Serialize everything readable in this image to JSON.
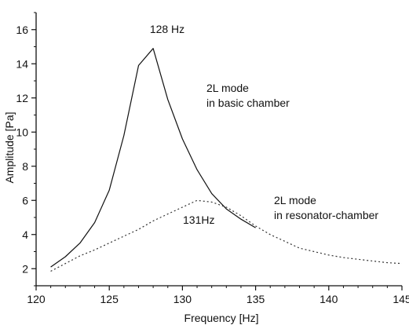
{
  "chart_data": {
    "type": "line",
    "xlabel": "Frequency [Hz]",
    "ylabel": "Amplitude [Pa]",
    "xlim": [
      120,
      145
    ],
    "ylim": [
      1,
      17
    ],
    "xticks": [
      120,
      125,
      130,
      135,
      140,
      145
    ],
    "yticks": [
      2,
      4,
      6,
      8,
      10,
      12,
      14,
      16
    ],
    "grid": false,
    "series": [
      {
        "style": "solid",
        "color": "#111111",
        "x": [
          121,
          122,
          123,
          124,
          125,
          126,
          127,
          128,
          129,
          130,
          131,
          132,
          133,
          134,
          135
        ],
        "y": [
          2.1,
          2.7,
          3.5,
          4.7,
          6.6,
          9.8,
          13.9,
          14.9,
          11.9,
          9.6,
          7.8,
          6.4,
          5.5,
          4.9,
          4.4
        ]
      },
      {
        "style": "dotted",
        "color": "#333333",
        "x": [
          121,
          122,
          123,
          124,
          125,
          126,
          127,
          128,
          129,
          130,
          131,
          132,
          133,
          134,
          135,
          136,
          137,
          138,
          139,
          140,
          141,
          142,
          143,
          144,
          145
        ],
        "y": [
          1.85,
          2.3,
          2.75,
          3.1,
          3.5,
          3.9,
          4.3,
          4.8,
          5.2,
          5.6,
          6.0,
          5.9,
          5.6,
          5.1,
          4.5,
          4.0,
          3.6,
          3.2,
          3.0,
          2.8,
          2.65,
          2.55,
          2.45,
          2.35,
          2.3
        ]
      }
    ],
    "annotations": [
      {
        "id": "peak-128",
        "text": "128 Hz"
      },
      {
        "id": "mode-basic-line1",
        "text": "2L mode"
      },
      {
        "id": "mode-basic-line2",
        "text": "in basic chamber"
      },
      {
        "id": "peak-131",
        "text": "131Hz"
      },
      {
        "id": "mode-res-line1",
        "text": "2L mode"
      },
      {
        "id": "mode-res-line2",
        "text": "in resonator-chamber"
      }
    ]
  }
}
